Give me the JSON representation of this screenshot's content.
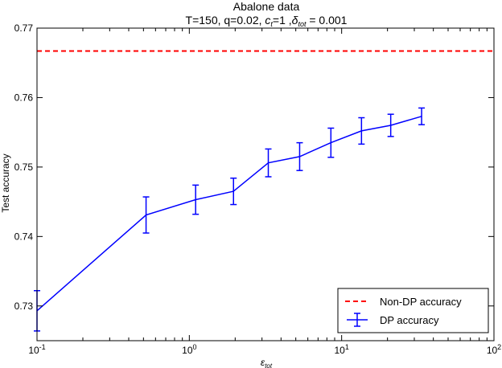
{
  "chart_data": {
    "type": "line",
    "title_line1": "Abalone data",
    "title_line2": {
      "prefix": "T=150, q=0.02, ",
      "c_symbol": "c",
      "c_sub": "t",
      "c_value": "=1 ,",
      "delta_symbol": "δ",
      "delta_sub": "tot",
      "delta_value": " = 0.001"
    },
    "xlabel": {
      "symbol": "ε",
      "sub": "tot"
    },
    "ylabel": "Test accuracy",
    "xscale": "log",
    "xlim": [
      0.1,
      100
    ],
    "ylim": [
      0.725,
      0.77
    ],
    "x_ticks": [
      {
        "value": 0.1,
        "base": "10",
        "exp": "-1"
      },
      {
        "value": 1,
        "base": "10",
        "exp": "0"
      },
      {
        "value": 10,
        "base": "10",
        "exp": "1"
      },
      {
        "value": 100,
        "base": "10",
        "exp": "2"
      }
    ],
    "y_ticks": [
      {
        "value": 0.73,
        "label": "0.73"
      },
      {
        "value": 0.74,
        "label": "0.74"
      },
      {
        "value": 0.75,
        "label": "0.75"
      },
      {
        "value": 0.76,
        "label": "0.76"
      },
      {
        "value": 0.77,
        "label": "0.77"
      }
    ],
    "grid": false,
    "legend_position": "bottom-right",
    "series": [
      {
        "name": "DP accuracy",
        "color": "#0000ff",
        "style": "solid-errorbar",
        "x": [
          0.1,
          0.52,
          1.1,
          1.95,
          3.3,
          5.3,
          8.5,
          13.5,
          21.0,
          33.5
        ],
        "y": [
          0.7293,
          0.7431,
          0.7453,
          0.7465,
          0.7506,
          0.7515,
          0.7535,
          0.7552,
          0.756,
          0.7573
        ],
        "err": [
          0.0029,
          0.0026,
          0.0021,
          0.0019,
          0.002,
          0.002,
          0.0021,
          0.0019,
          0.0016,
          0.0012
        ]
      },
      {
        "name": "Non-DP accuracy",
        "color": "#ff0000",
        "style": "dashed",
        "y": 0.7667
      }
    ]
  }
}
